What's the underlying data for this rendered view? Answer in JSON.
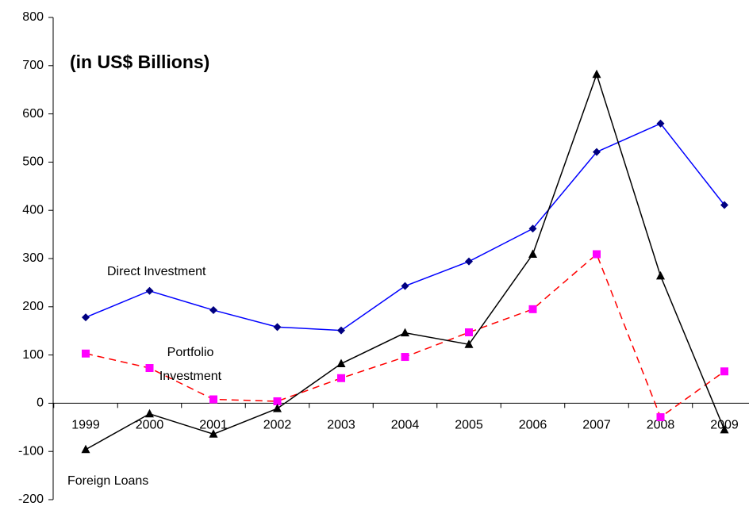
{
  "chart_data": {
    "type": "line",
    "title": "(in US$ Billions)",
    "categories": [
      "1999",
      "2000",
      "2001",
      "2002",
      "2003",
      "2004",
      "2005",
      "2006",
      "2007",
      "2008",
      "2009"
    ],
    "series": [
      {
        "name": "Direct Investment",
        "color": "#0000ff",
        "marker_color": "#000080",
        "marker": "diamond",
        "dash": false,
        "values": [
          178,
          233,
          193,
          158,
          151,
          243,
          294,
          362,
          521,
          580,
          411
        ]
      },
      {
        "name": "Portfolio Investment",
        "color": "#ff0000",
        "marker_color": "#ff00ff",
        "marker": "square",
        "dash": true,
        "values": [
          103,
          73,
          8,
          4,
          52,
          96,
          147,
          195,
          309,
          -29,
          66
        ]
      },
      {
        "name": "Foreign Loans",
        "color": "#000000",
        "marker_color": "#000000",
        "marker": "triangle",
        "dash": false,
        "values": [
          -96,
          -22,
          -64,
          -11,
          82,
          146,
          122,
          309,
          682,
          264,
          -55
        ]
      }
    ],
    "ylim": [
      -200,
      800
    ],
    "yticks": [
      -200,
      -100,
      0,
      100,
      200,
      300,
      400,
      500,
      600,
      700,
      800
    ],
    "grid": false
  }
}
